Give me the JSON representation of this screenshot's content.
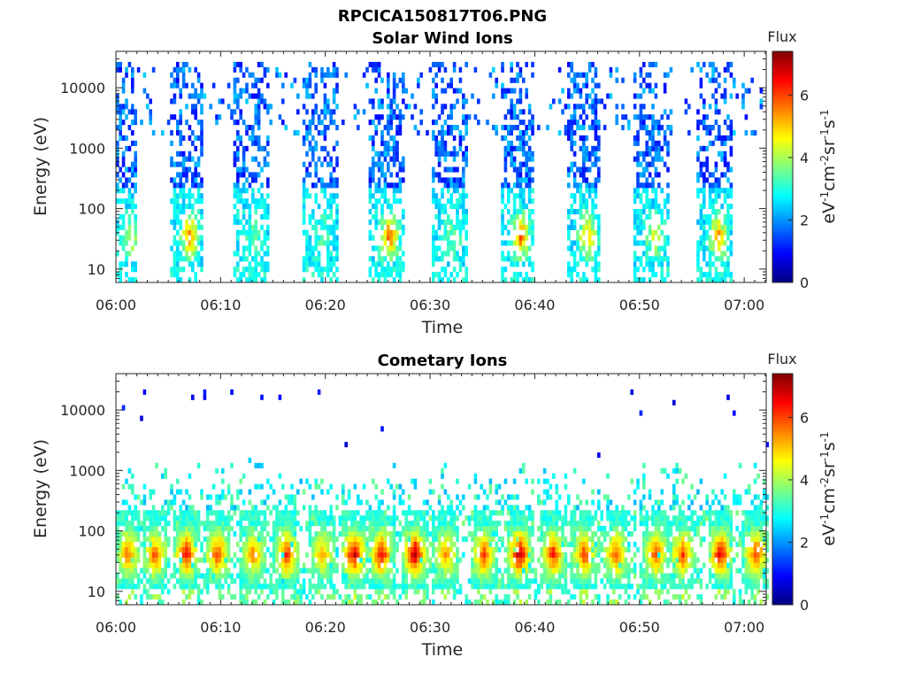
{
  "figure_title": "RPCICA150817T06.PNG",
  "chart_data": [
    {
      "type": "heatmap",
      "title": "Solar Wind Ions",
      "xlabel": "Time",
      "ylabel": "Energy (eV)",
      "x_range": [
        "06:00",
        "07:02"
      ],
      "y_scale": "log",
      "y_range": [
        6,
        40000
      ],
      "xticks": [
        "06:00",
        "06:10",
        "06:20",
        "06:30",
        "06:40",
        "06:50",
        "07:00"
      ],
      "yticks": [
        "10",
        "100",
        "1000",
        "10000"
      ],
      "colorbar": {
        "label": "Flux",
        "unit": "eV-1cm-2sr-1s-1",
        "ticks": [
          "0",
          "2",
          "4",
          "6"
        ],
        "range": [
          0,
          7.4
        ],
        "colormap": "jet"
      },
      "bursts": [
        {
          "start_min": 0.0,
          "end_min": 2.0,
          "low_energy_peak_flux": 4.2
        },
        {
          "start_min": 5.0,
          "end_min": 8.2,
          "low_energy_peak_flux": 5.6
        },
        {
          "start_min": 11.2,
          "end_min": 14.4,
          "low_energy_peak_flux": 3.4
        },
        {
          "start_min": 17.8,
          "end_min": 21.0,
          "low_energy_peak_flux": 3.2
        },
        {
          "start_min": 24.0,
          "end_min": 27.4,
          "low_energy_peak_flux": 5.8
        },
        {
          "start_min": 30.0,
          "end_min": 33.4,
          "low_energy_peak_flux": 3.4
        },
        {
          "start_min": 36.6,
          "end_min": 39.8,
          "low_energy_peak_flux": 5.9
        },
        {
          "start_min": 43.0,
          "end_min": 46.2,
          "low_energy_peak_flux": 5.2
        },
        {
          "start_min": 49.4,
          "end_min": 52.6,
          "low_energy_peak_flux": 4.4
        },
        {
          "start_min": 55.4,
          "end_min": 58.8,
          "low_energy_peak_flux": 5.3
        }
      ]
    },
    {
      "type": "heatmap",
      "title": "Cometary Ions",
      "xlabel": "Time",
      "ylabel": "Energy (eV)",
      "x_range": [
        "06:00",
        "07:02"
      ],
      "y_scale": "log",
      "y_range": [
        6,
        40000
      ],
      "xticks": [
        "06:00",
        "06:10",
        "06:20",
        "06:30",
        "06:40",
        "06:50",
        "07:00"
      ],
      "yticks": [
        "10",
        "100",
        "1000",
        "10000"
      ],
      "colorbar": {
        "label": "Flux",
        "unit": "eV-1cm-2sr-1s-1",
        "ticks": [
          "0",
          "2",
          "4",
          "6"
        ],
        "range": [
          0,
          7.4
        ],
        "colormap": "jet"
      },
      "bursts": [
        {
          "center_min": 1.0,
          "peak_flux": 5.8
        },
        {
          "center_min": 3.6,
          "peak_flux": 6.0
        },
        {
          "center_min": 6.6,
          "peak_flux": 6.6
        },
        {
          "center_min": 9.6,
          "peak_flux": 6.2
        },
        {
          "center_min": 13.0,
          "peak_flux": 5.6
        },
        {
          "center_min": 16.2,
          "peak_flux": 6.4
        },
        {
          "center_min": 19.6,
          "peak_flux": 5.2
        },
        {
          "center_min": 22.6,
          "peak_flux": 7.0
        },
        {
          "center_min": 25.2,
          "peak_flux": 6.8
        },
        {
          "center_min": 28.4,
          "peak_flux": 7.3
        },
        {
          "center_min": 31.4,
          "peak_flux": 5.6
        },
        {
          "center_min": 35.0,
          "peak_flux": 6.2
        },
        {
          "center_min": 38.4,
          "peak_flux": 7.2
        },
        {
          "center_min": 41.6,
          "peak_flux": 6.4
        },
        {
          "center_min": 44.6,
          "peak_flux": 6.2
        },
        {
          "center_min": 47.6,
          "peak_flux": 6.0
        },
        {
          "center_min": 51.4,
          "peak_flux": 6.0
        },
        {
          "center_min": 54.0,
          "peak_flux": 6.2
        },
        {
          "center_min": 57.6,
          "peak_flux": 6.8
        },
        {
          "center_min": 61.0,
          "peak_flux": 6.2
        }
      ]
    }
  ]
}
